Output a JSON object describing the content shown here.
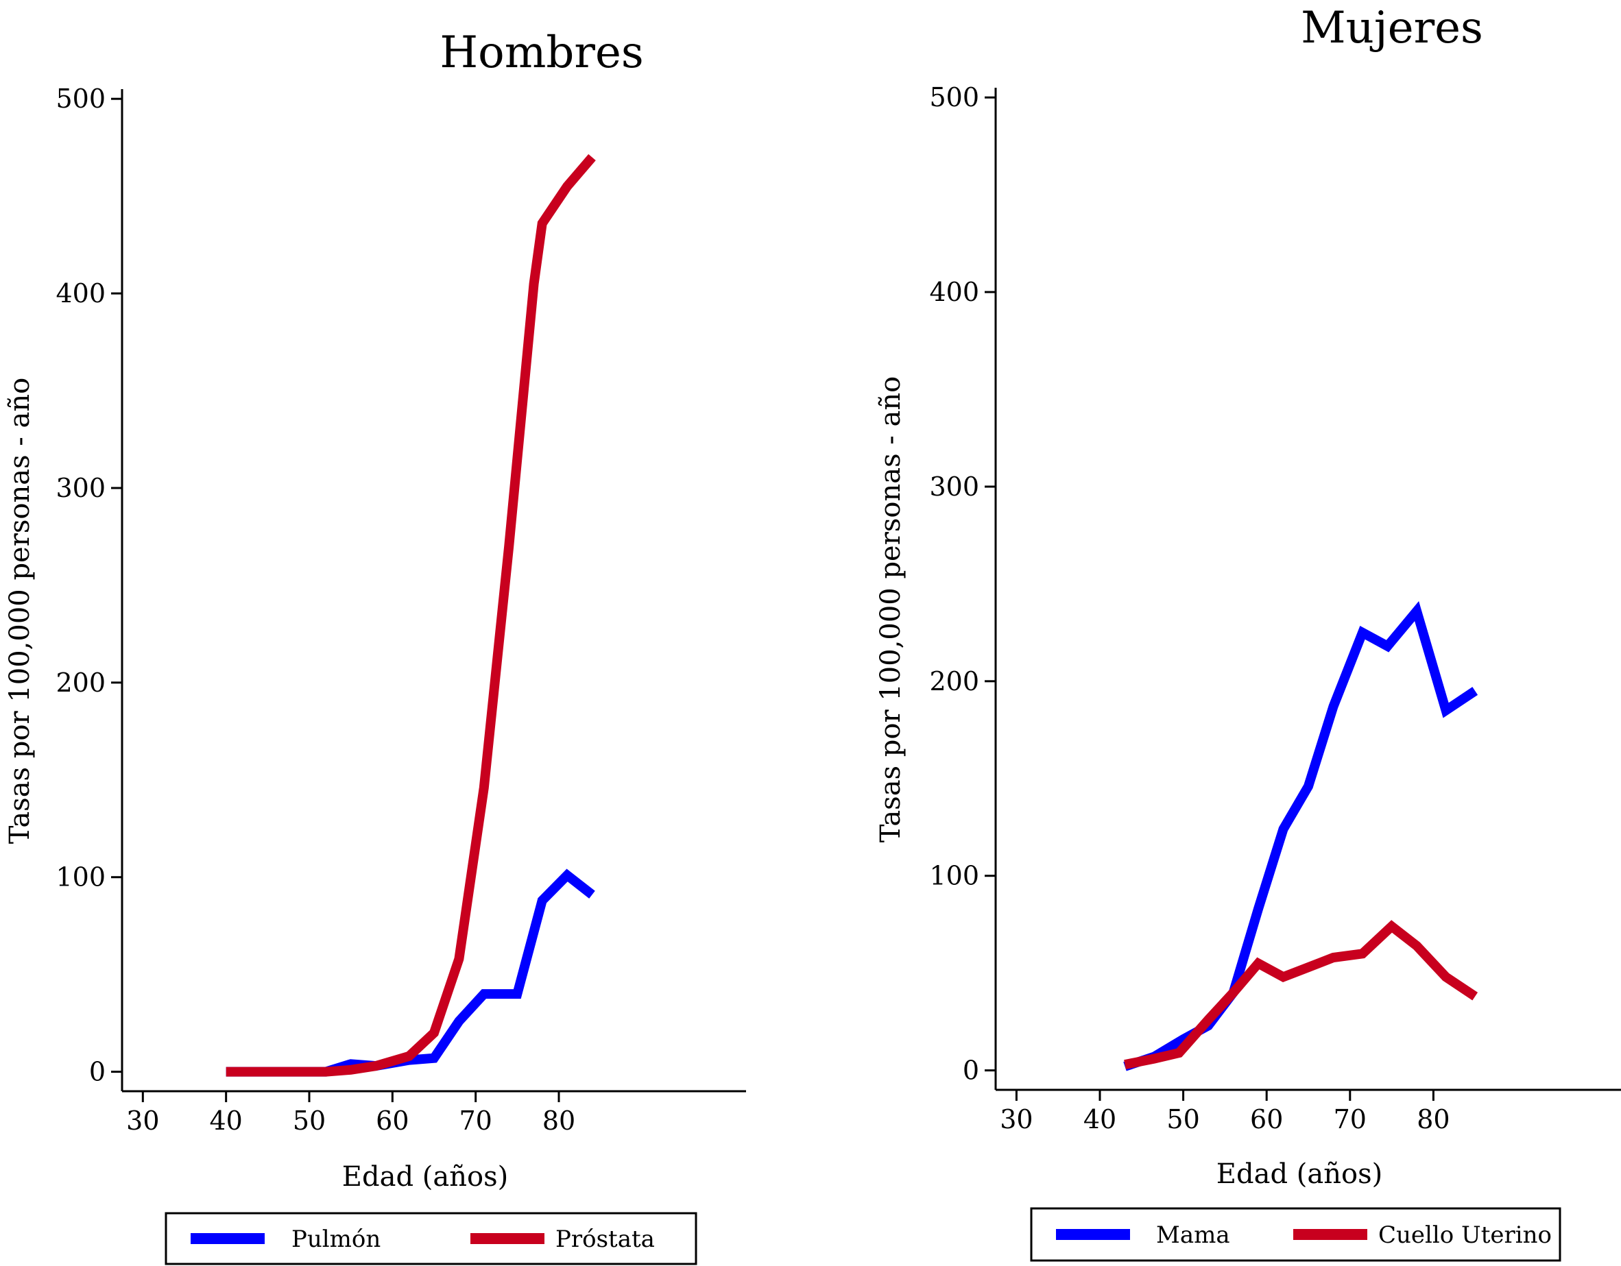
{
  "chart_data": [
    {
      "type": "line",
      "title": "Hombres",
      "xlabel": "Edad (años)",
      "ylabel": "Tasas por 100,000 personas - año",
      "xticks": [
        30,
        40,
        50,
        60,
        70,
        80
      ],
      "yticks": [
        0,
        100,
        200,
        300,
        400,
        500
      ],
      "xlim": [
        27.5,
        102.5
      ],
      "ylim": [
        -10,
        505
      ],
      "legend_position": "bottom",
      "series": [
        {
          "name": "Pulmón",
          "color": "#0000ff",
          "x": [
            40,
            42,
            44,
            46,
            48,
            52,
            55,
            58,
            62,
            65,
            68,
            71,
            75,
            78,
            81,
            84
          ],
          "y": [
            0,
            0,
            0,
            0,
            0,
            0,
            4,
            3,
            6,
            7,
            26,
            40,
            40,
            88,
            101,
            91
          ]
        },
        {
          "name": "Próstata",
          "color": "#c8001e",
          "x": [
            40,
            44,
            48,
            52,
            55,
            58,
            62,
            65,
            68,
            71,
            74,
            77,
            78,
            81,
            84
          ],
          "y": [
            0,
            0,
            0,
            0,
            1,
            3,
            8,
            20,
            58,
            146,
            270,
            405,
            436,
            455,
            470
          ]
        }
      ]
    },
    {
      "type": "line",
      "title": "Mujeres",
      "xlabel": "Edad (años)",
      "ylabel": "Tasas por 100,000 personas - año",
      "xticks": [
        30,
        40,
        50,
        60,
        70,
        80
      ],
      "yticks": [
        0,
        100,
        200,
        300,
        400,
        500
      ],
      "xlim": [
        27.5,
        102.5
      ],
      "ylim": [
        -10,
        505
      ],
      "legend_position": "bottom",
      "series": [
        {
          "name": "Mama",
          "color": "#0000ff",
          "x": [
            43,
            46.5,
            50,
            53,
            56,
            59,
            62,
            65,
            68,
            71.5,
            74.5,
            78,
            81.5,
            85
          ],
          "y": [
            2,
            7,
            16,
            23,
            40,
            83,
            124,
            146,
            187,
            225,
            218,
            236,
            185,
            195
          ]
        },
        {
          "name": "Cuello Uterino",
          "color": "#c8001e",
          "x": [
            43,
            46.5,
            49.5,
            53,
            56,
            59,
            62,
            65,
            68,
            71.5,
            75,
            78,
            81.5,
            85
          ],
          "y": [
            3,
            6,
            9,
            26,
            40,
            55,
            48,
            53,
            58,
            60,
            74,
            64,
            48,
            38
          ]
        }
      ]
    }
  ]
}
